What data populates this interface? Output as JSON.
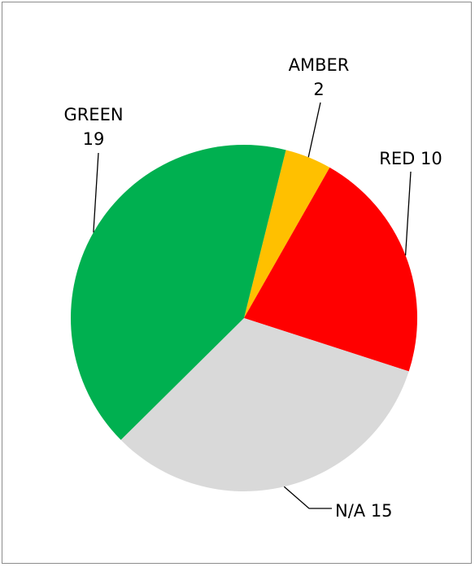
{
  "chart_data": {
    "type": "pie",
    "title": "",
    "start_angle_deg": 14,
    "direction": "clockwise",
    "slices": [
      {
        "label": "AMBER",
        "value": 2,
        "color": "#FFC000"
      },
      {
        "label": "RED",
        "value": 10,
        "color": "#FF0000"
      },
      {
        "label": "N/A",
        "value": 15,
        "color": "#D9D9D9"
      },
      {
        "label": "GREEN",
        "value": 19,
        "color": "#00B050"
      }
    ],
    "data_labels": [
      {
        "text_lines": [
          "AMBER",
          "2"
        ]
      },
      {
        "text_lines": [
          "RED 10"
        ]
      },
      {
        "text_lines": [
          "N/A 15"
        ]
      },
      {
        "text_lines": [
          "GREEN",
          "19"
        ]
      }
    ],
    "legend": "none"
  }
}
